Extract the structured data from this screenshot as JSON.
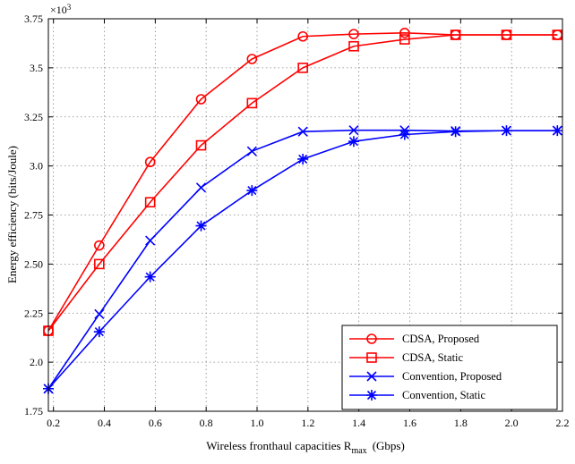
{
  "chart_data": {
    "type": "line",
    "xlabel": "Wireless fronthaul capacities R",
    "xlabel_sub": "max",
    "xlabel_unit": "(Gbps)",
    "ylabel": "Energy efficiency (bits/Joule)",
    "y_multiplier": "×10",
    "y_multiplier_exp": "3",
    "xlim": [
      0.18,
      2.2
    ],
    "ylim": [
      1.75,
      3.75
    ],
    "xticks": [
      0.2,
      0.4,
      0.6,
      0.8,
      1.0,
      1.2,
      1.4,
      1.6,
      1.8,
      2.0,
      2.2
    ],
    "xtick_labels": [
      "0.2",
      "0.4",
      "0.6",
      "0.8",
      "1.0",
      "1.2",
      "1.4",
      "1.6",
      "1.8",
      "2.0",
      "2.2"
    ],
    "yticks": [
      1.75,
      2.0,
      2.25,
      2.5,
      2.75,
      3.0,
      3.25,
      3.5,
      3.75
    ],
    "ytick_labels": [
      "1.75",
      "2.0",
      "2.25",
      "2.50",
      "2.75",
      "3.0",
      "3.25",
      "3.5",
      "3.75"
    ],
    "grid": true,
    "legend_position": "bottom-right",
    "x": [
      0.18,
      0.38,
      0.58,
      0.78,
      0.98,
      1.18,
      1.38,
      1.58,
      1.78,
      1.98,
      2.18
    ],
    "series": [
      {
        "name": "CDSA, Proposed",
        "color": "#ff0000",
        "marker": "circle",
        "values": [
          2.16,
          2.595,
          3.02,
          3.34,
          3.545,
          3.66,
          3.672,
          3.678,
          3.668,
          3.668,
          3.668
        ]
      },
      {
        "name": "CDSA, Static",
        "color": "#ff0000",
        "marker": "square",
        "values": [
          2.16,
          2.5,
          2.815,
          3.105,
          3.32,
          3.5,
          3.61,
          3.645,
          3.668,
          3.668,
          3.668
        ]
      },
      {
        "name": "Convention, Proposed",
        "color": "#0000ff",
        "marker": "x",
        "values": [
          1.865,
          2.245,
          2.62,
          2.89,
          3.075,
          3.175,
          3.182,
          3.182,
          3.178,
          3.18,
          3.18
        ]
      },
      {
        "name": "Convention, Static",
        "color": "#0000ff",
        "marker": "asterisk",
        "values": [
          1.865,
          2.155,
          2.435,
          2.695,
          2.875,
          3.035,
          3.125,
          3.16,
          3.175,
          3.18,
          3.18
        ]
      }
    ]
  }
}
